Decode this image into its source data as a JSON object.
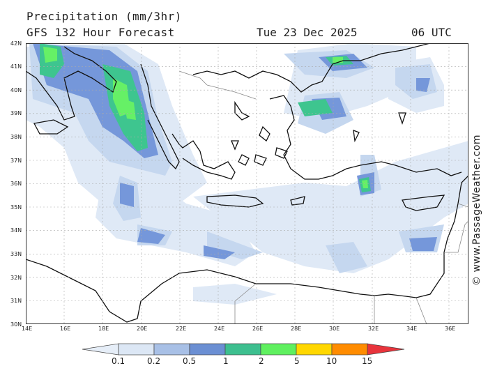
{
  "header": {
    "title": "Precipitation (mm/3hr)",
    "subtitle": "GFS 132 Hour Forecast",
    "date": "Tue 23 Dec 2025",
    "time": "06 UTC"
  },
  "credit": "© www.PassageWeather.com",
  "lat_labels": [
    "42N",
    "41N",
    "40N",
    "39N",
    "38N",
    "37N",
    "36N",
    "35N",
    "34N",
    "33N",
    "32N",
    "31N",
    "30N"
  ],
  "lon_labels": [
    "14E",
    "16E",
    "18E",
    "20E",
    "22E",
    "24E",
    "26E",
    "28E",
    "30E",
    "32E",
    "34E",
    "36E"
  ],
  "legend": {
    "labels": [
      "0.1",
      "0.2",
      "0.5",
      "1",
      "2",
      "5",
      "10",
      "15"
    ],
    "colors": [
      "#e6eef8",
      "#c8d8ef",
      "#9cb6e0",
      "#6b8fd3",
      "#3dbf8f",
      "#5ff05f",
      "#ffd700",
      "#ff8c00",
      "#e8343c"
    ]
  }
}
